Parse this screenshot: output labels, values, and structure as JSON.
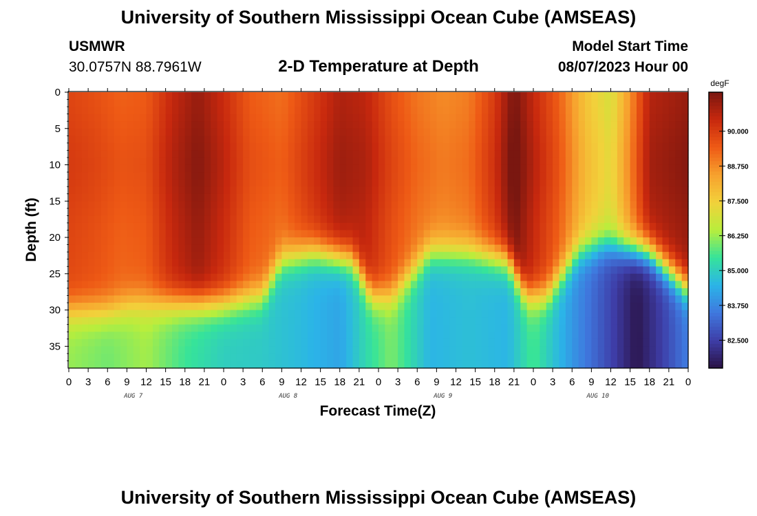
{
  "header": {
    "title": "University of Southern Mississippi Ocean Cube (AMSEAS)",
    "station": "USMWR",
    "coords": "30.0757N  88.7961W",
    "subtitle": "2-D Temperature at Depth",
    "model_start_label": "Model Start Time",
    "model_start_value": "08/07/2023 Hour 00"
  },
  "footer": {
    "title": "University of Southern Mississippi Ocean Cube (AMSEAS)"
  },
  "colors": {
    "ramp": [
      "#2a1245",
      "#3e3ea8",
      "#3f78de",
      "#2bb4e8",
      "#36e39a",
      "#b8ee3c",
      "#f2d13b",
      "#f7a12e",
      "#ee5a15",
      "#c7280e",
      "#7a1710"
    ],
    "ramp_min": 81.5,
    "ramp_max": 91.4
  },
  "chart_data": {
    "type": "heatmap",
    "title": "2-D Temperature at Depth",
    "xlabel": "Forecast Time(Z)",
    "ylabel": "Depth (ft)",
    "units": "degF",
    "x_range_hours": [
      0,
      96
    ],
    "ylim": [
      0,
      38
    ],
    "y_ticks": [
      0,
      5,
      10,
      15,
      20,
      25,
      30,
      35
    ],
    "x_ticks": [
      "0",
      "3",
      "6",
      "9",
      "12",
      "15",
      "18",
      "21",
      "0",
      "3",
      "6",
      "9",
      "12",
      "15",
      "18",
      "21",
      "0",
      "3",
      "6",
      "9",
      "12",
      "15",
      "18",
      "21",
      "0",
      "3",
      "6",
      "9",
      "12",
      "15",
      "18",
      "21",
      "0"
    ],
    "day_labels": [
      "AUG 7",
      "AUG 8",
      "AUG 9",
      "AUG 10"
    ],
    "colorbar_ticks": [
      "90.000",
      "88.750",
      "87.500",
      "86.250",
      "85.000",
      "83.750",
      "82.500"
    ],
    "colorbar_values": [
      90.0,
      88.75,
      87.5,
      86.25,
      85.0,
      83.75,
      82.5
    ],
    "thermocline_depth_ft": [
      [
        0,
        30
      ],
      [
        6,
        30
      ],
      [
        10,
        29
      ],
      [
        18,
        29
      ],
      [
        24,
        29
      ],
      [
        30,
        28
      ],
      [
        33,
        23
      ],
      [
        38,
        22
      ],
      [
        44,
        23
      ],
      [
        47,
        28
      ],
      [
        50,
        28
      ],
      [
        56,
        22
      ],
      [
        62,
        22
      ],
      [
        68,
        23
      ],
      [
        71,
        28
      ],
      [
        74,
        28
      ],
      [
        79,
        22
      ],
      [
        83,
        21
      ],
      [
        90,
        22
      ],
      [
        96,
        27
      ]
    ],
    "surface_layer_temperature_degF": [
      [
        0,
        89.8
      ],
      [
        4,
        89.6
      ],
      [
        8,
        89.3
      ],
      [
        12,
        89.4
      ],
      [
        16,
        90.4
      ],
      [
        20,
        91.0
      ],
      [
        24,
        90.3
      ],
      [
        28,
        89.4
      ],
      [
        33,
        89.1
      ],
      [
        38,
        90.0
      ],
      [
        42,
        90.7
      ],
      [
        46,
        90.5
      ],
      [
        50,
        89.6
      ],
      [
        54,
        89.0
      ],
      [
        58,
        88.7
      ],
      [
        62,
        88.9
      ],
      [
        66,
        90.0
      ],
      [
        69,
        91.4
      ],
      [
        72,
        90.4
      ],
      [
        76,
        89.3
      ],
      [
        80,
        87.7
      ],
      [
        84,
        86.9
      ],
      [
        87,
        88.6
      ],
      [
        90,
        90.6
      ],
      [
        96,
        91.0
      ]
    ],
    "bottom_layer_temperature_degF": [
      [
        0,
        86.2
      ],
      [
        6,
        85.9
      ],
      [
        12,
        86.3
      ],
      [
        18,
        85.5
      ],
      [
        24,
        85.0
      ],
      [
        30,
        84.9
      ],
      [
        36,
        84.6
      ],
      [
        42,
        84.2
      ],
      [
        46,
        85.2
      ],
      [
        50,
        86.0
      ],
      [
        56,
        84.5
      ],
      [
        62,
        84.7
      ],
      [
        68,
        84.5
      ],
      [
        72,
        85.6
      ],
      [
        78,
        84.0
      ],
      [
        84,
        82.6
      ],
      [
        88,
        81.6
      ],
      [
        92,
        82.5
      ],
      [
        96,
        83.6
      ]
    ]
  }
}
